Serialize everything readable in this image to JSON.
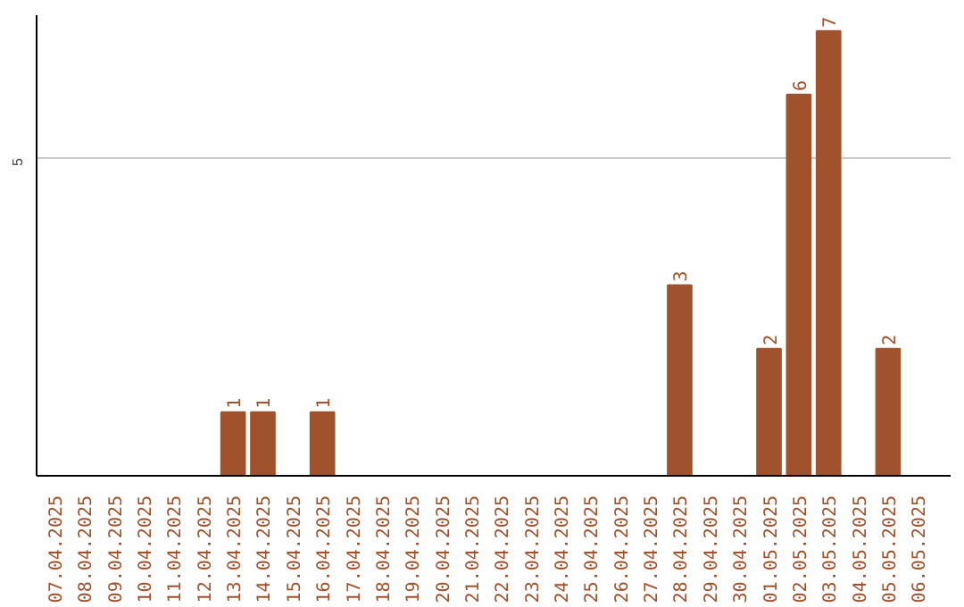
{
  "chart_data": {
    "type": "bar",
    "categories": [
      "07.04.2025",
      "08.04.2025",
      "09.04.2025",
      "10.04.2025",
      "11.04.2025",
      "12.04.2025",
      "13.04.2025",
      "14.04.2025",
      "15.04.2025",
      "16.04.2025",
      "17.04.2025",
      "18.04.2025",
      "19.04.2025",
      "20.04.2025",
      "21.04.2025",
      "22.04.2025",
      "23.04.2025",
      "24.04.2025",
      "25.04.2025",
      "26.04.2025",
      "27.04.2025",
      "28.04.2025",
      "29.04.2025",
      "30.04.2025",
      "01.05.2025",
      "02.05.2025",
      "03.05.2025",
      "04.05.2025",
      "05.05.2025",
      "06.05.2025"
    ],
    "values": [
      0,
      0,
      0,
      0,
      0,
      0,
      1,
      1,
      0,
      1,
      0,
      0,
      0,
      0,
      0,
      0,
      0,
      0,
      0,
      0,
      0,
      3,
      0,
      0,
      2,
      6,
      7,
      0,
      2,
      0
    ],
    "value_labels": [
      null,
      null,
      null,
      null,
      null,
      null,
      "1",
      "1",
      null,
      "1",
      null,
      null,
      null,
      null,
      null,
      null,
      null,
      null,
      null,
      null,
      null,
      "3",
      null,
      null,
      "2",
      "6",
      "7",
      null,
      "2",
      null
    ],
    "color": "#a0522d",
    "ylim": [
      0,
      7.25
    ],
    "yticks": [
      5
    ],
    "grid": "y"
  }
}
